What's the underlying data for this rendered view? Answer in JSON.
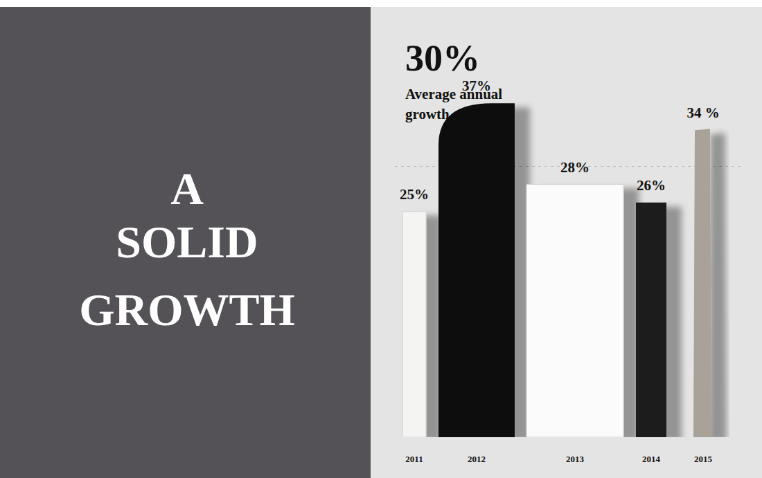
{
  "chart_data": {
    "type": "bar",
    "title": "A SOLID GROWTH",
    "annotation": {
      "value": 30,
      "label": "30%",
      "text": "Average annual growth"
    },
    "categories": [
      "2011",
      "2012",
      "2013",
      "2014",
      "2015"
    ],
    "values": [
      25,
      37,
      28,
      26,
      34
    ],
    "value_labels": [
      "25%",
      "37%",
      "28%",
      "26%",
      "34 %"
    ],
    "colors": [
      "#f4f4f2",
      "#0c0c0c",
      "#fbfbfb",
      "#1e1e1e",
      "#a8a298"
    ],
    "ylim": [
      0,
      40
    ],
    "data_labels": true,
    "tick_labels": "x",
    "grid": false
  }
}
